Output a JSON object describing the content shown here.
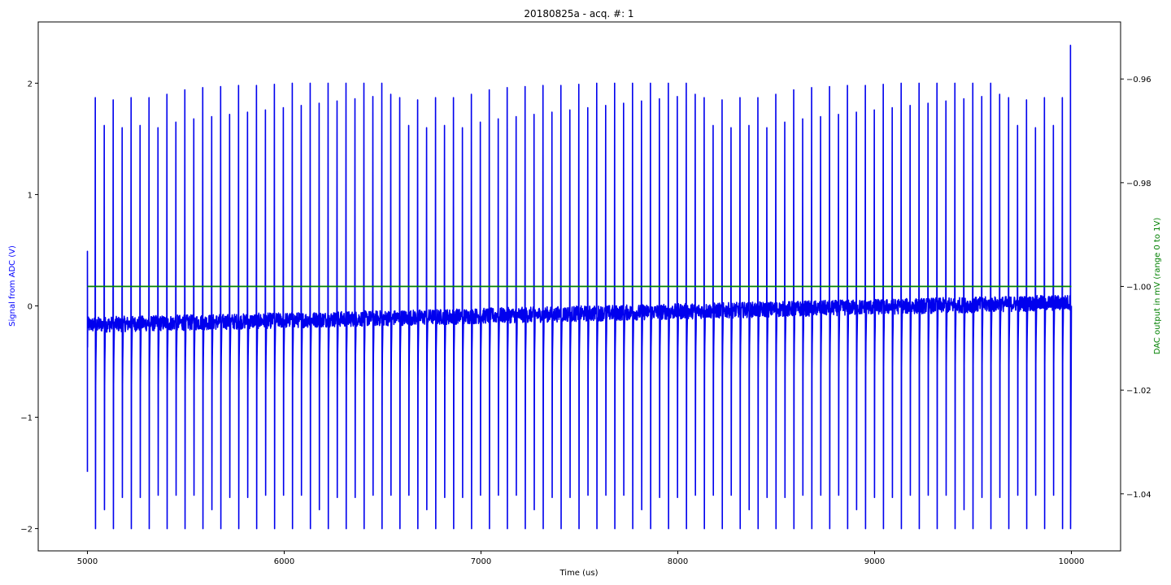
{
  "chart_data": {
    "type": "line",
    "title": "20180825a - acq. #: 1",
    "xlabel": "Time (us)",
    "ylabel_left": "Signal from ADC (V)",
    "ylabel_right": "DAC output in mV (range 0 to 1V)",
    "xlim": [
      4750,
      10250
    ],
    "ylim_left": [
      -2.2,
      2.55
    ],
    "ylim_right": [
      -1.051,
      -0.949
    ],
    "x_ticks": [
      5000,
      6000,
      7000,
      8000,
      9000,
      10000
    ],
    "x_tick_labels": [
      "5000",
      "6000",
      "7000",
      "8000",
      "9000",
      "10000"
    ],
    "y_left_ticks": [
      -2,
      -1,
      0,
      1,
      2
    ],
    "y_left_tick_labels": [
      "−2",
      "−1",
      "0",
      "1",
      "2"
    ],
    "y_right_ticks": [
      -1.04,
      -1.02,
      -1.0,
      -0.98,
      -0.96
    ],
    "y_right_tick_labels": [
      "−1.04",
      "−1.02",
      "−1.00",
      "−0.98",
      "−0.96"
    ],
    "grid": false,
    "colors": {
      "left_axis": "#0000ff",
      "right_axis": "#008000",
      "signal": "#0000ee",
      "dac": "#008000"
    },
    "series": [
      {
        "axis": "left",
        "color": "#0000ee",
        "x_range": [
          5000,
          10000
        ],
        "baseline": [
          -0.17,
          0.03
        ],
        "initial_spike": {
          "x": 5000,
          "max": 0.49,
          "min": -1.49
        },
        "spikes": {
          "first_x": 5040,
          "period": 45.5,
          "count": 110,
          "peak_max": [
            1.87,
            1.62,
            1.85,
            1.6,
            1.87,
            1.62,
            1.87,
            1.6,
            1.9,
            1.65,
            1.94,
            1.68,
            1.96,
            1.7,
            1.97,
            1.72,
            1.98,
            1.74,
            1.98,
            1.76,
            1.99,
            1.78,
            2.0,
            1.8,
            2.0,
            1.82,
            2.0,
            1.84,
            2.0,
            1.86,
            2.0,
            1.88,
            2.0,
            1.9
          ],
          "trough_min": [
            -2.0,
            -1.83,
            -2.0,
            -1.72,
            -2.0,
            -1.72,
            -2.0,
            -1.7,
            -2.0,
            -1.7,
            -2.0,
            -1.7
          ]
        },
        "final_spike": {
          "x": 9995,
          "max": 2.34,
          "min": -2.0
        }
      },
      {
        "axis": "right",
        "color": "#008000",
        "x": [
          5000,
          10000
        ],
        "values": [
          -1.0,
          -1.0
        ]
      }
    ]
  }
}
